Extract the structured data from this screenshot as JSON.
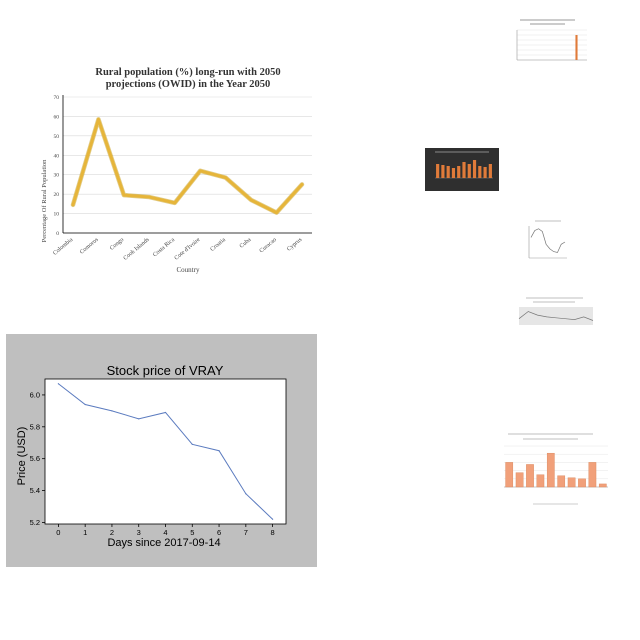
{
  "colors": {
    "line1": "#e6b53a",
    "line1_edge": "#c9a227",
    "line2": "#5b7bbf",
    "panel_gray": "#bfbfbf",
    "orange": "#e07b3a",
    "orange_light": "#f1a07a",
    "dark_bg": "#2f2f2f"
  },
  "chart_data": [
    {
      "type": "line",
      "title": "Rural population (%) long-run with 2050 projections (OWID) in the Year 2050",
      "title_lines": [
        "Rural population (%) long-run with 2050",
        "projections (OWID) in the Year 2050"
      ],
      "xlabel": "Country",
      "ylabel": "Percentage Of Rural Population",
      "categories": [
        "Colombia",
        "Comoros",
        "Congo",
        "Cook Islands",
        "Costa Rica",
        "Cote d'Ivoire",
        "Croatia",
        "Cuba",
        "Curacao",
        "Cyprus"
      ],
      "values": [
        14.5,
        58.5,
        19.5,
        18.5,
        15.5,
        32,
        28.5,
        17,
        10.5,
        25
      ],
      "ylim": [
        0,
        70
      ],
      "yticks": [
        0,
        10,
        20,
        30,
        40,
        50,
        60,
        70
      ],
      "grid": true
    },
    {
      "type": "line",
      "title": "Stock price of VRAY",
      "xlabel": "Days since 2017-09-14",
      "ylabel": "Price (USD)",
      "x": [
        0,
        1,
        2,
        3,
        4,
        5,
        6,
        7,
        8
      ],
      "values": [
        6.07,
        5.94,
        5.9,
        5.85,
        5.89,
        5.69,
        5.65,
        5.38,
        5.22
      ],
      "xlim": [
        -0.5,
        8.5
      ],
      "ylim": [
        5.19,
        6.1
      ],
      "xticks": [
        "0",
        "1",
        "2",
        "3",
        "4",
        "5",
        "6",
        "7",
        "8"
      ],
      "yticks": [
        "5.2",
        "5.4",
        "5.6",
        "5.8",
        "6.0"
      ],
      "grid": false
    },
    {
      "type": "bar",
      "series_count": 9,
      "values": [
        0,
        0,
        0,
        0,
        0,
        0,
        0,
        0,
        10,
        0
      ],
      "ylim": [
        0,
        12
      ]
    },
    {
      "type": "bar",
      "values": [
        7,
        6.5,
        6,
        5,
        6,
        8,
        7,
        9,
        6,
        5.5,
        7
      ],
      "ylim": [
        0,
        10
      ]
    },
    {
      "type": "line",
      "values": [
        45,
        60,
        64,
        58,
        30,
        20,
        14,
        12,
        30,
        35
      ],
      "ylim": [
        0,
        70
      ]
    },
    {
      "type": "area",
      "values": [
        14,
        30,
        22,
        18,
        16,
        14,
        12,
        18,
        10
      ],
      "ylim": [
        0,
        40
      ]
    },
    {
      "type": "bar",
      "values": [
        24,
        14,
        22,
        12,
        33,
        11,
        9,
        8,
        24,
        3
      ],
      "ylim": [
        0,
        40
      ]
    }
  ]
}
